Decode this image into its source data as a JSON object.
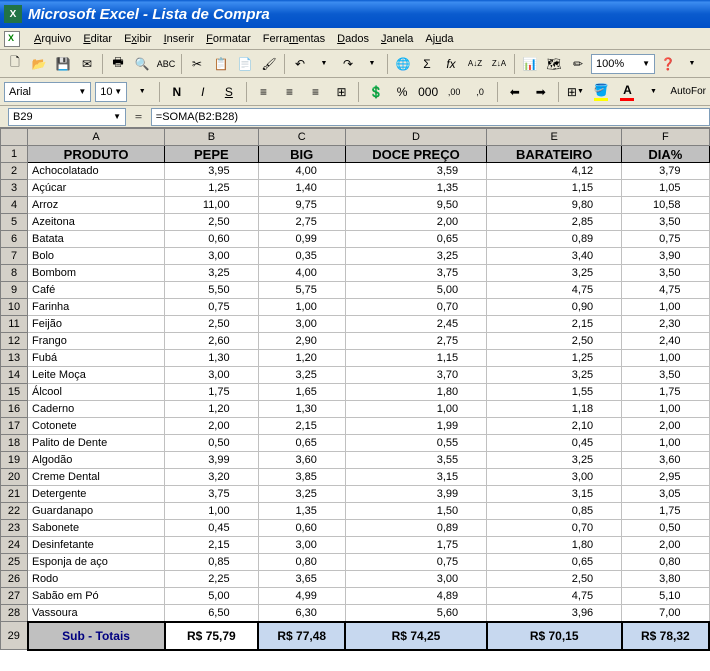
{
  "window": {
    "title": "Microsoft Excel - Lista de Compra"
  },
  "menus": {
    "arquivo": "Arquivo",
    "editar": "Editar",
    "exibir": "Exibir",
    "inserir": "Inserir",
    "formatar": "Formatar",
    "ferramentas": "Ferramentas",
    "dados": "Dados",
    "janela": "Janela",
    "ajuda": "Ajuda"
  },
  "toolbar": {
    "zoom": "100%"
  },
  "format": {
    "font": "Arial",
    "size": "10",
    "autoformat": "AutoFor"
  },
  "formula": {
    "cellref": "B29",
    "formula": "=SOMA(B2:B28)",
    "eq": "="
  },
  "columns": {
    "A": "A",
    "B": "B",
    "C": "C",
    "D": "D",
    "E": "E",
    "F": "F"
  },
  "headers": {
    "produto": "PRODUTO",
    "pepe": "PEPE",
    "big": "BIG",
    "doce": "DOCE PREÇO",
    "barateiro": "BARATEIRO",
    "dia": "DIA%"
  },
  "rows": [
    {
      "n": "2",
      "p": "Achocolatado",
      "b": "3,95",
      "c": "4,00",
      "d": "3,59",
      "e": "4,12",
      "f": "3,79"
    },
    {
      "n": "3",
      "p": "Açúcar",
      "b": "1,25",
      "c": "1,40",
      "d": "1,35",
      "e": "1,15",
      "f": "1,05"
    },
    {
      "n": "4",
      "p": "Arroz",
      "b": "11,00",
      "c": "9,75",
      "d": "9,50",
      "e": "9,80",
      "f": "10,58"
    },
    {
      "n": "5",
      "p": "Azeitona",
      "b": "2,50",
      "c": "2,75",
      "d": "2,00",
      "e": "2,85",
      "f": "3,50"
    },
    {
      "n": "6",
      "p": "Batata",
      "b": "0,60",
      "c": "0,99",
      "d": "0,65",
      "e": "0,89",
      "f": "0,75"
    },
    {
      "n": "7",
      "p": "Bolo",
      "b": "3,00",
      "c": "0,35",
      "d": "3,25",
      "e": "3,40",
      "f": "3,90"
    },
    {
      "n": "8",
      "p": "Bombom",
      "b": "3,25",
      "c": "4,00",
      "d": "3,75",
      "e": "3,25",
      "f": "3,50"
    },
    {
      "n": "9",
      "p": "Café",
      "b": "5,50",
      "c": "5,75",
      "d": "5,00",
      "e": "4,75",
      "f": "4,75"
    },
    {
      "n": "10",
      "p": "Farinha",
      "b": "0,75",
      "c": "1,00",
      "d": "0,70",
      "e": "0,90",
      "f": "1,00"
    },
    {
      "n": "11",
      "p": "Feijão",
      "b": "2,50",
      "c": "3,00",
      "d": "2,45",
      "e": "2,15",
      "f": "2,30"
    },
    {
      "n": "12",
      "p": "Frango",
      "b": "2,60",
      "c": "2,90",
      "d": "2,75",
      "e": "2,50",
      "f": "2,40"
    },
    {
      "n": "13",
      "p": "Fubá",
      "b": "1,30",
      "c": "1,20",
      "d": "1,15",
      "e": "1,25",
      "f": "1,00"
    },
    {
      "n": "14",
      "p": "Leite Moça",
      "b": "3,00",
      "c": "3,25",
      "d": "3,70",
      "e": "3,25",
      "f": "3,50"
    },
    {
      "n": "15",
      "p": "Álcool",
      "b": "1,75",
      "c": "1,65",
      "d": "1,80",
      "e": "1,55",
      "f": "1,75"
    },
    {
      "n": "16",
      "p": "Caderno",
      "b": "1,20",
      "c": "1,30",
      "d": "1,00",
      "e": "1,18",
      "f": "1,00"
    },
    {
      "n": "17",
      "p": "Cotonete",
      "b": "2,00",
      "c": "2,15",
      "d": "1,99",
      "e": "2,10",
      "f": "2,00"
    },
    {
      "n": "18",
      "p": "Palito de Dente",
      "b": "0,50",
      "c": "0,65",
      "d": "0,55",
      "e": "0,45",
      "f": "1,00"
    },
    {
      "n": "19",
      "p": "Algodão",
      "b": "3,99",
      "c": "3,60",
      "d": "3,55",
      "e": "3,25",
      "f": "3,60"
    },
    {
      "n": "20",
      "p": "Creme Dental",
      "b": "3,20",
      "c": "3,85",
      "d": "3,15",
      "e": "3,00",
      "f": "2,95"
    },
    {
      "n": "21",
      "p": "Detergente",
      "b": "3,75",
      "c": "3,25",
      "d": "3,99",
      "e": "3,15",
      "f": "3,05"
    },
    {
      "n": "22",
      "p": "Guardanapo",
      "b": "1,00",
      "c": "1,35",
      "d": "1,50",
      "e": "0,85",
      "f": "1,75"
    },
    {
      "n": "23",
      "p": "Sabonete",
      "b": "0,45",
      "c": "0,60",
      "d": "0,89",
      "e": "0,70",
      "f": "0,50"
    },
    {
      "n": "24",
      "p": "Desinfetante",
      "b": "2,15",
      "c": "3,00",
      "d": "1,75",
      "e": "1,80",
      "f": "2,00"
    },
    {
      "n": "25",
      "p": "Esponja de aço",
      "b": "0,85",
      "c": "0,80",
      "d": "0,75",
      "e": "0,65",
      "f": "0,80"
    },
    {
      "n": "26",
      "p": "Rodo",
      "b": "2,25",
      "c": "3,65",
      "d": "3,00",
      "e": "2,50",
      "f": "3,80"
    },
    {
      "n": "27",
      "p": "Sabão em Pó",
      "b": "5,00",
      "c": "4,99",
      "d": "4,89",
      "e": "4,75",
      "f": "5,10"
    },
    {
      "n": "28",
      "p": "Vassoura",
      "b": "6,50",
      "c": "6,30",
      "d": "5,60",
      "e": "3,96",
      "f": "7,00"
    }
  ],
  "subtotal": {
    "n": "29",
    "label": "Sub - Totais",
    "b": "R$ 75,79",
    "c": "R$ 77,48",
    "d": "R$ 74,25",
    "e": "R$ 70,15",
    "f": "R$ 78,32"
  },
  "colors": {
    "titlebar": "#0a5bce",
    "menubg": "#ece9d8",
    "headerbg": "#c0c0c0",
    "selectbg": "#c7d8ef",
    "gridline": "#c0c0c0",
    "rowhead": "#d4d0c8"
  }
}
